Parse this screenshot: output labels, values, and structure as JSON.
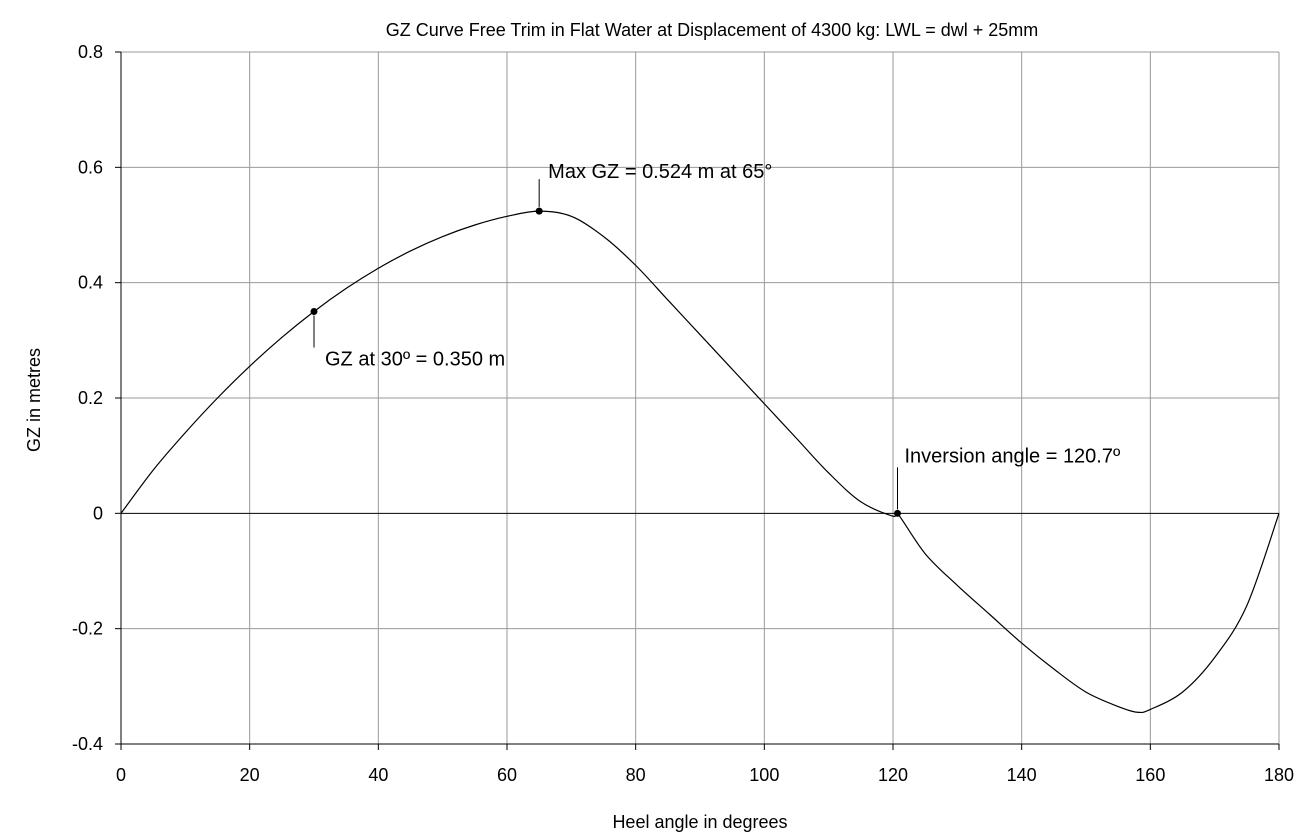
{
  "chart_data": {
    "type": "line",
    "title": "GZ Curve Free Trim in Flat Water at Displacement of 4300 kg: LWL = dwl + 25mm",
    "xlabel": "Heel angle in degrees",
    "ylabel": "GZ  in metres",
    "xlim": [
      0,
      180
    ],
    "ylim": [
      -0.4,
      0.8
    ],
    "x_ticks": [
      0,
      20,
      40,
      60,
      80,
      100,
      120,
      140,
      160,
      180
    ],
    "y_ticks": [
      -0.4,
      -0.2,
      0,
      0.2,
      0.4,
      0.6,
      0.8
    ],
    "x_tick_labels": [
      "0",
      "20",
      "40",
      "60",
      "80",
      "100",
      "120",
      "140",
      "160",
      "180"
    ],
    "y_tick_labels": [
      "-0.4",
      "-0.2",
      "0",
      "0.2",
      "0.4",
      "0.6",
      "0.8"
    ],
    "grid": true,
    "series": [
      {
        "x": [
          0,
          5,
          10,
          15,
          20,
          25,
          30,
          35,
          40,
          45,
          50,
          55,
          60,
          65,
          70,
          75,
          80,
          85,
          90,
          95,
          100,
          105,
          110,
          115,
          120,
          120.7,
          125,
          130,
          135,
          140,
          145,
          150,
          155,
          158,
          160,
          165,
          170,
          175,
          180
        ],
        "y": [
          0,
          0.075,
          0.14,
          0.2,
          0.255,
          0.305,
          0.35,
          0.39,
          0.425,
          0.455,
          0.48,
          0.5,
          0.515,
          0.524,
          0.515,
          0.48,
          0.43,
          0.37,
          0.31,
          0.25,
          0.19,
          0.13,
          0.07,
          0.02,
          -0.005,
          0,
          -0.07,
          -0.125,
          -0.175,
          -0.225,
          -0.27,
          -0.31,
          -0.335,
          -0.345,
          -0.34,
          -0.31,
          -0.25,
          -0.16,
          0
        ]
      }
    ],
    "markers": [
      {
        "x": 30,
        "y": 0.35
      },
      {
        "x": 65,
        "y": 0.524
      },
      {
        "x": 120.7,
        "y": 0
      }
    ],
    "annotations": [
      {
        "text": "Max GZ = 0.524 m at 65°",
        "x": 65,
        "y": 0.524
      },
      {
        "text": "GZ at 30º = 0.350 m",
        "x": 30,
        "y": 0.35
      },
      {
        "text": "Inversion angle = 120.7º",
        "x": 120.7,
        "y": 0
      }
    ],
    "colors": {
      "line": "#000000",
      "grid": "#999999",
      "background": "#ffffff"
    }
  }
}
